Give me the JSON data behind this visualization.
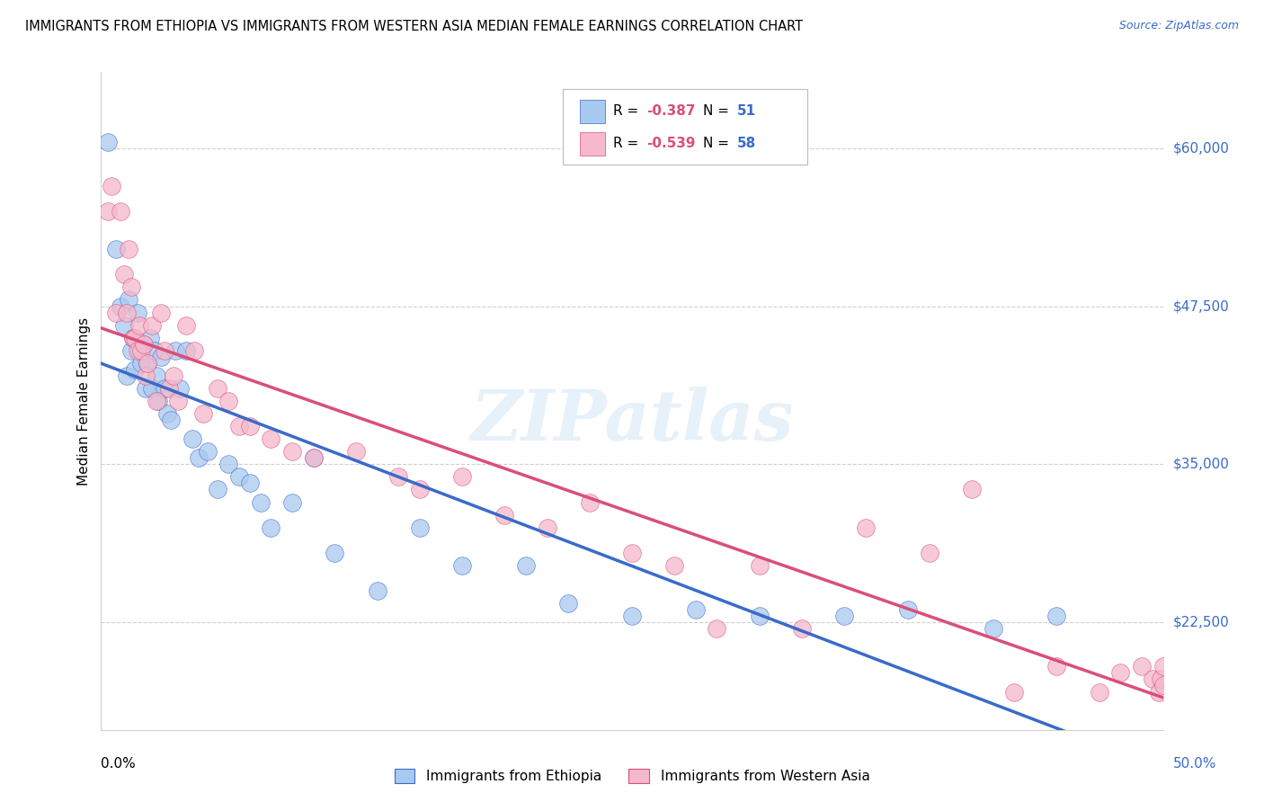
{
  "title": "IMMIGRANTS FROM ETHIOPIA VS IMMIGRANTS FROM WESTERN ASIA MEDIAN FEMALE EARNINGS CORRELATION CHART",
  "source": "Source: ZipAtlas.com",
  "ylabel": "Median Female Earnings",
  "xmin": 0.0,
  "xmax": 0.5,
  "ymin": 14000,
  "ymax": 66000,
  "yticks": [
    22500,
    35000,
    47500,
    60000
  ],
  "ytick_labels": [
    "$22,500",
    "$35,000",
    "$47,500",
    "$60,000"
  ],
  "background_color": "#ffffff",
  "grid_color": "#d0d0d0",
  "watermark": "ZIPatlas",
  "color_ethiopia_fill": "#aac9f0",
  "color_ethiopia_edge": "#3a6bc9",
  "color_western_asia_fill": "#f5b8cc",
  "color_western_asia_edge": "#d94f7a",
  "line_color_ethiopia": "#3a6bc9",
  "line_color_western_asia": "#d94f7a",
  "label_color": "#3a6bc9",
  "legend_r1": "-0.387",
  "legend_n1": "51",
  "legend_r2": "-0.539",
  "legend_n2": "58",
  "ethiopia_x": [
    0.003,
    0.007,
    0.009,
    0.011,
    0.012,
    0.013,
    0.014,
    0.015,
    0.016,
    0.017,
    0.018,
    0.019,
    0.02,
    0.021,
    0.022,
    0.023,
    0.024,
    0.025,
    0.026,
    0.027,
    0.028,
    0.03,
    0.031,
    0.033,
    0.035,
    0.037,
    0.04,
    0.043,
    0.046,
    0.05,
    0.055,
    0.06,
    0.065,
    0.07,
    0.075,
    0.08,
    0.09,
    0.1,
    0.11,
    0.13,
    0.15,
    0.17,
    0.2,
    0.22,
    0.25,
    0.28,
    0.31,
    0.35,
    0.38,
    0.42,
    0.45
  ],
  "ethiopia_y": [
    60500,
    52000,
    47500,
    46000,
    42000,
    48000,
    44000,
    45000,
    42500,
    47000,
    44000,
    43000,
    44500,
    41000,
    43000,
    45000,
    41000,
    44000,
    42000,
    40000,
    43500,
    41000,
    39000,
    38500,
    44000,
    41000,
    44000,
    37000,
    35500,
    36000,
    33000,
    35000,
    34000,
    33500,
    32000,
    30000,
    32000,
    35500,
    28000,
    25000,
    30000,
    27000,
    27000,
    24000,
    23000,
    23500,
    23000,
    23000,
    23500,
    22000,
    23000
  ],
  "western_asia_x": [
    0.003,
    0.005,
    0.007,
    0.009,
    0.011,
    0.012,
    0.013,
    0.014,
    0.015,
    0.016,
    0.017,
    0.018,
    0.019,
    0.02,
    0.021,
    0.022,
    0.024,
    0.026,
    0.028,
    0.03,
    0.032,
    0.034,
    0.036,
    0.04,
    0.044,
    0.048,
    0.055,
    0.06,
    0.065,
    0.07,
    0.08,
    0.09,
    0.1,
    0.12,
    0.14,
    0.15,
    0.17,
    0.19,
    0.21,
    0.23,
    0.25,
    0.27,
    0.29,
    0.31,
    0.33,
    0.36,
    0.39,
    0.41,
    0.43,
    0.45,
    0.47,
    0.48,
    0.49,
    0.495,
    0.498,
    0.499,
    0.5,
    0.5
  ],
  "western_asia_y": [
    55000,
    57000,
    47000,
    55000,
    50000,
    47000,
    52000,
    49000,
    45000,
    45000,
    44000,
    46000,
    44000,
    44500,
    42000,
    43000,
    46000,
    40000,
    47000,
    44000,
    41000,
    42000,
    40000,
    46000,
    44000,
    39000,
    41000,
    40000,
    38000,
    38000,
    37000,
    36000,
    35500,
    36000,
    34000,
    33000,
    34000,
    31000,
    30000,
    32000,
    28000,
    27000,
    22000,
    27000,
    22000,
    30000,
    28000,
    33000,
    17000,
    19000,
    17000,
    18500,
    19000,
    18000,
    17000,
    18000,
    17500,
    19000
  ]
}
